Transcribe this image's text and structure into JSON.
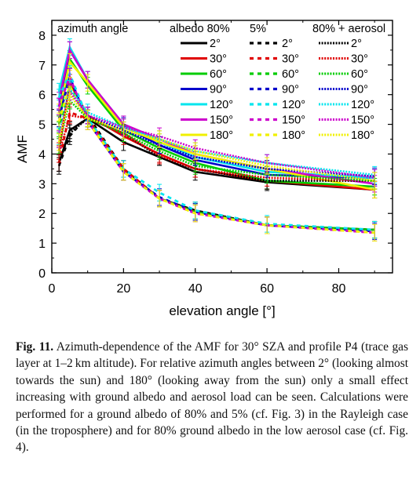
{
  "chart_data": {
    "type": "line",
    "ylabel": "AMF",
    "xlabel": "elevation angle [°]",
    "xlim": [
      0,
      95
    ],
    "ylim": [
      0,
      8.5
    ],
    "xticks": [
      "0",
      "20",
      "40",
      "60",
      "80"
    ],
    "yticks": [
      "0",
      "1",
      "2",
      "3",
      "4",
      "5",
      "6",
      "7",
      "8"
    ],
    "x": [
      2,
      5,
      10,
      20,
      30,
      40,
      60,
      90
    ],
    "legend_title": "azimuth angle",
    "legend_groups": [
      "albedo 80%",
      "5%",
      "80% + aerosol"
    ],
    "legend_labels": [
      "2°",
      "30°",
      "60°",
      "90°",
      "120°",
      "150°",
      "180°"
    ],
    "colors": [
      "#000000",
      "#e00000",
      "#00cc00",
      "#0000cc",
      "#00e5ee",
      "#cc00cc",
      "#f0f000"
    ],
    "series": [
      {
        "group": "albedo 80%",
        "label": "2°",
        "color": "#000000",
        "values": [
          3.7,
          4.8,
          5.2,
          4.4,
          3.9,
          3.4,
          3.05,
          2.8
        ]
      },
      {
        "group": "albedo 80%",
        "label": "30°",
        "color": "#e00000",
        "values": [
          4.1,
          6.4,
          5.3,
          4.6,
          4.0,
          3.5,
          3.1,
          2.8
        ]
      },
      {
        "group": "albedo 80%",
        "label": "60°",
        "color": "#00cc00",
        "values": [
          5.0,
          7.2,
          6.3,
          4.8,
          4.2,
          3.7,
          3.1,
          2.9
        ]
      },
      {
        "group": "albedo 80%",
        "label": "90°",
        "color": "#0000cc",
        "values": [
          5.6,
          7.5,
          6.5,
          4.95,
          4.3,
          3.8,
          3.3,
          3.2
        ]
      },
      {
        "group": "albedo 80%",
        "label": "120°",
        "color": "#00e5ee",
        "values": [
          6.1,
          7.6,
          6.5,
          5.0,
          4.4,
          3.9,
          3.4,
          3.2
        ]
      },
      {
        "group": "albedo 80%",
        "label": "150°",
        "color": "#cc00cc",
        "values": [
          5.8,
          7.5,
          6.5,
          5.0,
          4.5,
          4.0,
          3.5,
          3.0
        ]
      },
      {
        "group": "albedo 80%",
        "label": "180°",
        "color": "#f0f000",
        "values": [
          5.4,
          7.1,
          6.4,
          4.9,
          4.4,
          4.0,
          3.5,
          2.8
        ]
      },
      {
        "group": "5%",
        "label": "2°",
        "color": "#000000",
        "values": [
          3.6,
          4.6,
          5.3,
          3.5,
          2.5,
          2.1,
          1.6,
          1.45
        ]
      },
      {
        "group": "5%",
        "label": "30°",
        "color": "#e00000",
        "values": [
          3.7,
          5.4,
          5.2,
          3.5,
          2.5,
          2.05,
          1.6,
          1.45
        ]
      },
      {
        "group": "5%",
        "label": "60°",
        "color": "#00cc00",
        "values": [
          4.8,
          6.3,
          5.2,
          3.4,
          2.5,
          2.05,
          1.6,
          1.45
        ]
      },
      {
        "group": "5%",
        "label": "90°",
        "color": "#0000cc",
        "values": [
          5.2,
          6.6,
          5.1,
          3.4,
          2.55,
          2.05,
          1.6,
          1.4
        ]
      },
      {
        "group": "5%",
        "label": "120°",
        "color": "#00e5ee",
        "values": [
          5.9,
          6.7,
          5.2,
          3.5,
          2.7,
          2.1,
          1.65,
          1.45
        ]
      },
      {
        "group": "5%",
        "label": "150°",
        "color": "#cc00cc",
        "values": [
          5.6,
          6.6,
          5.1,
          3.4,
          2.5,
          2.0,
          1.6,
          1.35
        ]
      },
      {
        "group": "5%",
        "label": "180°",
        "color": "#f0f000",
        "values": [
          5.1,
          6.3,
          5.1,
          3.4,
          2.5,
          2.0,
          1.6,
          1.35
        ]
      },
      {
        "group": "80% + aerosol",
        "label": "2°",
        "color": "#000000",
        "values": [
          3.7,
          4.7,
          5.2,
          4.7,
          3.9,
          3.5,
          3.1,
          3.1
        ]
      },
      {
        "group": "80% + aerosol",
        "label": "30°",
        "color": "#e00000",
        "values": [
          4.0,
          5.3,
          5.2,
          4.7,
          3.95,
          3.5,
          3.2,
          3.1
        ]
      },
      {
        "group": "80% + aerosol",
        "label": "60°",
        "color": "#00cc00",
        "values": [
          4.3,
          5.8,
          5.2,
          4.7,
          4.1,
          3.6,
          3.3,
          3.1
        ]
      },
      {
        "group": "80% + aerosol",
        "label": "90°",
        "color": "#0000cc",
        "values": [
          4.5,
          6.0,
          5.3,
          4.8,
          4.3,
          3.9,
          3.5,
          3.25
        ]
      },
      {
        "group": "80% + aerosol",
        "label": "120°",
        "color": "#00e5ee",
        "values": [
          4.6,
          6.2,
          5.4,
          4.9,
          4.5,
          4.1,
          3.7,
          3.3
        ]
      },
      {
        "group": "80% + aerosol",
        "label": "150°",
        "color": "#cc00cc",
        "values": [
          4.5,
          6.1,
          5.3,
          4.9,
          4.6,
          4.2,
          3.7,
          3.2
        ]
      },
      {
        "group": "80% + aerosol",
        "label": "180°",
        "color": "#f0f000",
        "values": [
          4.4,
          6.0,
          5.2,
          4.8,
          4.5,
          4.1,
          3.6,
          3.1
        ]
      }
    ]
  },
  "caption": {
    "label": "Fig. 11.",
    "text": " Azimuth-dependence of the AMF for 30° SZA and profile P4 (trace gas layer at 1–2 km altitude). For relative azimuth angles between 2° (looking almost towards the sun) and 180° (looking away from the sun) only a small effect increasing with ground albedo and aerosol load can be seen. Calculations were performed for a ground albedo of 80% and 5% (cf. Fig. 3) in the Rayleigh case (in the troposphere) and for 80% ground albedo in the low aerosol case (cf. Fig. 4)."
  }
}
